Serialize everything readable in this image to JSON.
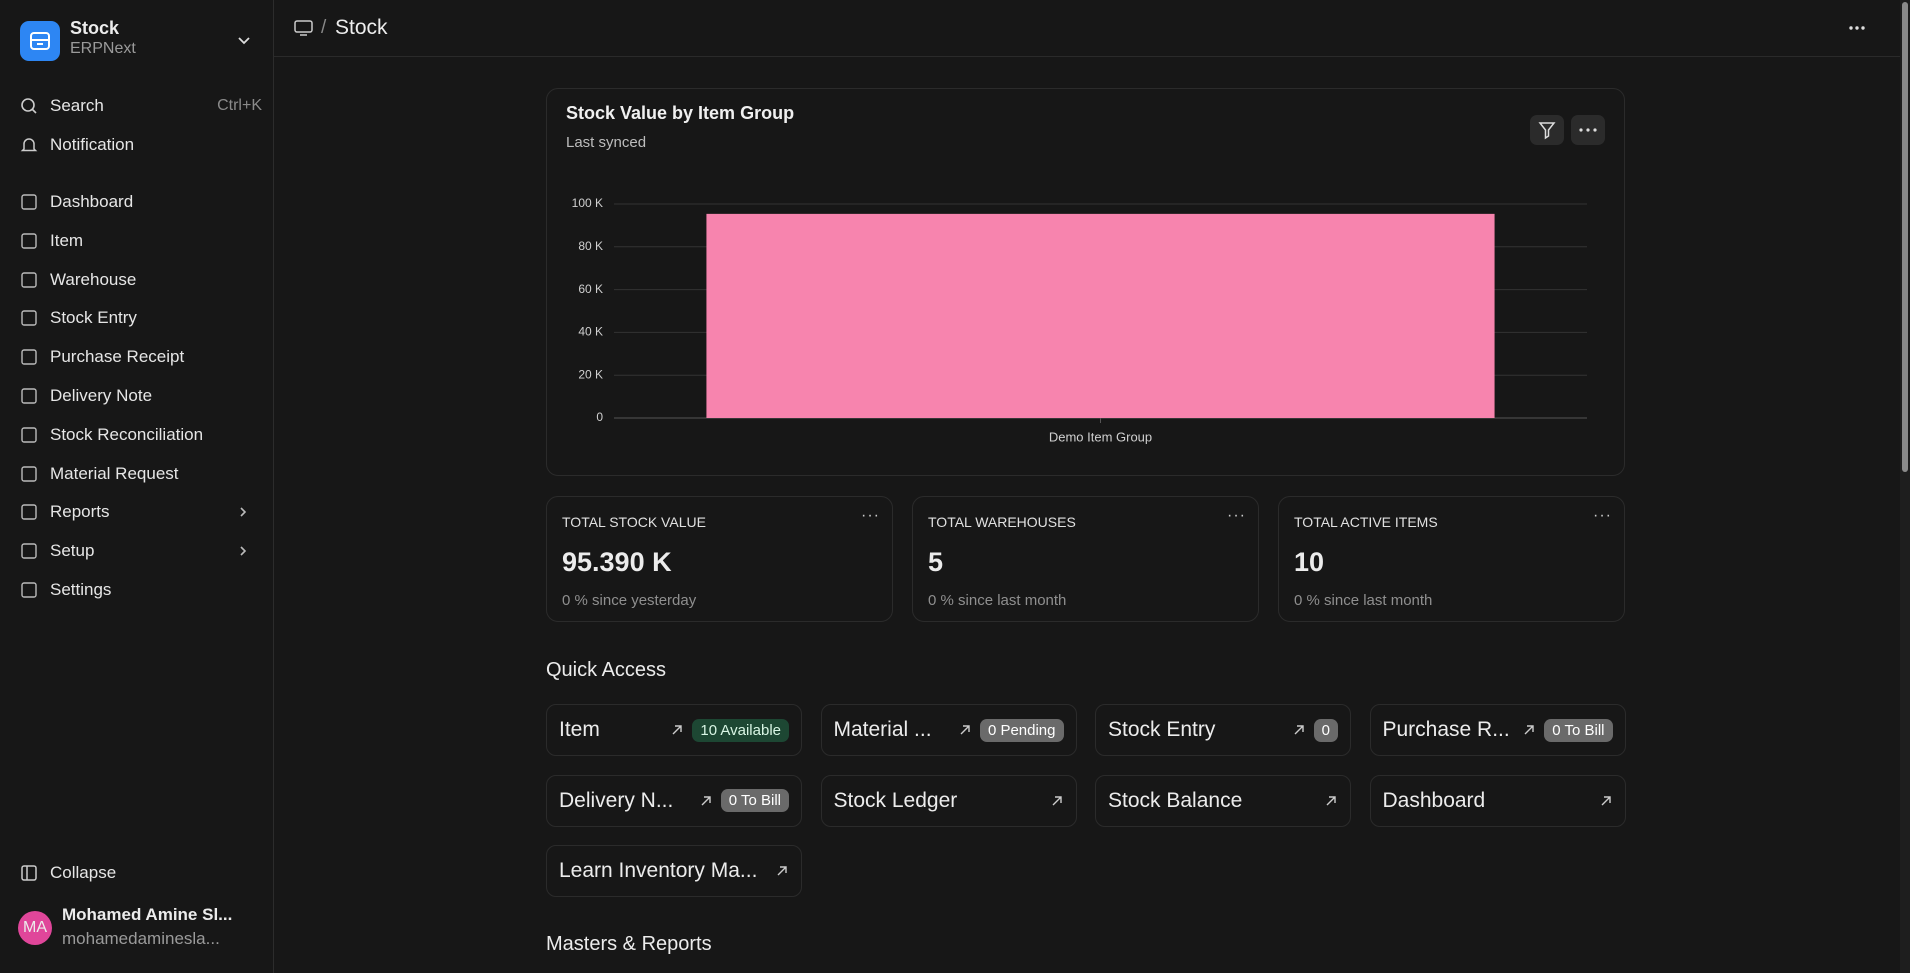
{
  "sidebar": {
    "app": "Stock",
    "subtitle": "ERPNext",
    "search": "Search",
    "search_shortcut": "Ctrl+K",
    "notification": "Notification",
    "nav": [
      {
        "label": "Dashboard"
      },
      {
        "label": "Item"
      },
      {
        "label": "Warehouse"
      },
      {
        "label": "Stock Entry"
      },
      {
        "label": "Purchase Receipt"
      },
      {
        "label": "Delivery Note"
      },
      {
        "label": "Stock Reconciliation"
      },
      {
        "label": "Material Request"
      },
      {
        "label": "Reports",
        "expandable": true
      },
      {
        "label": "Setup",
        "expandable": true
      },
      {
        "label": "Settings"
      }
    ],
    "collapse": "Collapse",
    "user": {
      "initials": "MA",
      "name": "Mohamed Amine Sl...",
      "email": "mohamedaminesla..."
    }
  },
  "header": {
    "separator": "/",
    "title": "Stock"
  },
  "chart": {
    "type": "bar",
    "title": "Stock Value by Item Group",
    "subtitle": "Last synced",
    "categories": [
      "Demo Item Group"
    ],
    "values": [
      95390
    ],
    "color": "#f784ae",
    "ylim": [
      0,
      100000
    ],
    "yticks": [
      0,
      {
        "value": 20000,
        "label": "20 K"
      },
      {
        "value": 40000,
        "label": "40 K"
      },
      {
        "value": 60000,
        "label": "60 K"
      },
      {
        "value": 80000,
        "label": "80 K"
      },
      {
        "value": 100000,
        "label": "100 K"
      }
    ],
    "grid": true
  },
  "number_cards": [
    {
      "label": "TOTAL STOCK VALUE",
      "value": "95.390 K",
      "footer": "0 % since yesterday"
    },
    {
      "label": "TOTAL WAREHOUSES",
      "value": "5",
      "footer": "0 % since last month"
    },
    {
      "label": "TOTAL ACTIVE ITEMS",
      "value": "10",
      "footer": "0 % since last month"
    }
  ],
  "quick_access": {
    "title": "Quick Access",
    "items": [
      {
        "label": "Item",
        "badge": "10 Available",
        "badge_color": "green"
      },
      {
        "label": "Material ...",
        "badge": "0 Pending",
        "badge_color": "gray"
      },
      {
        "label": "Stock Entry",
        "badge": "0",
        "badge_color": "gray"
      },
      {
        "label": "Purchase R...",
        "badge": "0 To Bill",
        "badge_color": "gray"
      },
      {
        "label": "Delivery N...",
        "badge": "0 To Bill",
        "badge_color": "gray"
      },
      {
        "label": "Stock Ledger"
      },
      {
        "label": "Stock Balance"
      },
      {
        "label": "Dashboard"
      },
      {
        "label": "Learn Inventory Ma..."
      }
    ]
  },
  "masters_reports": {
    "title": "Masters & Reports"
  }
}
